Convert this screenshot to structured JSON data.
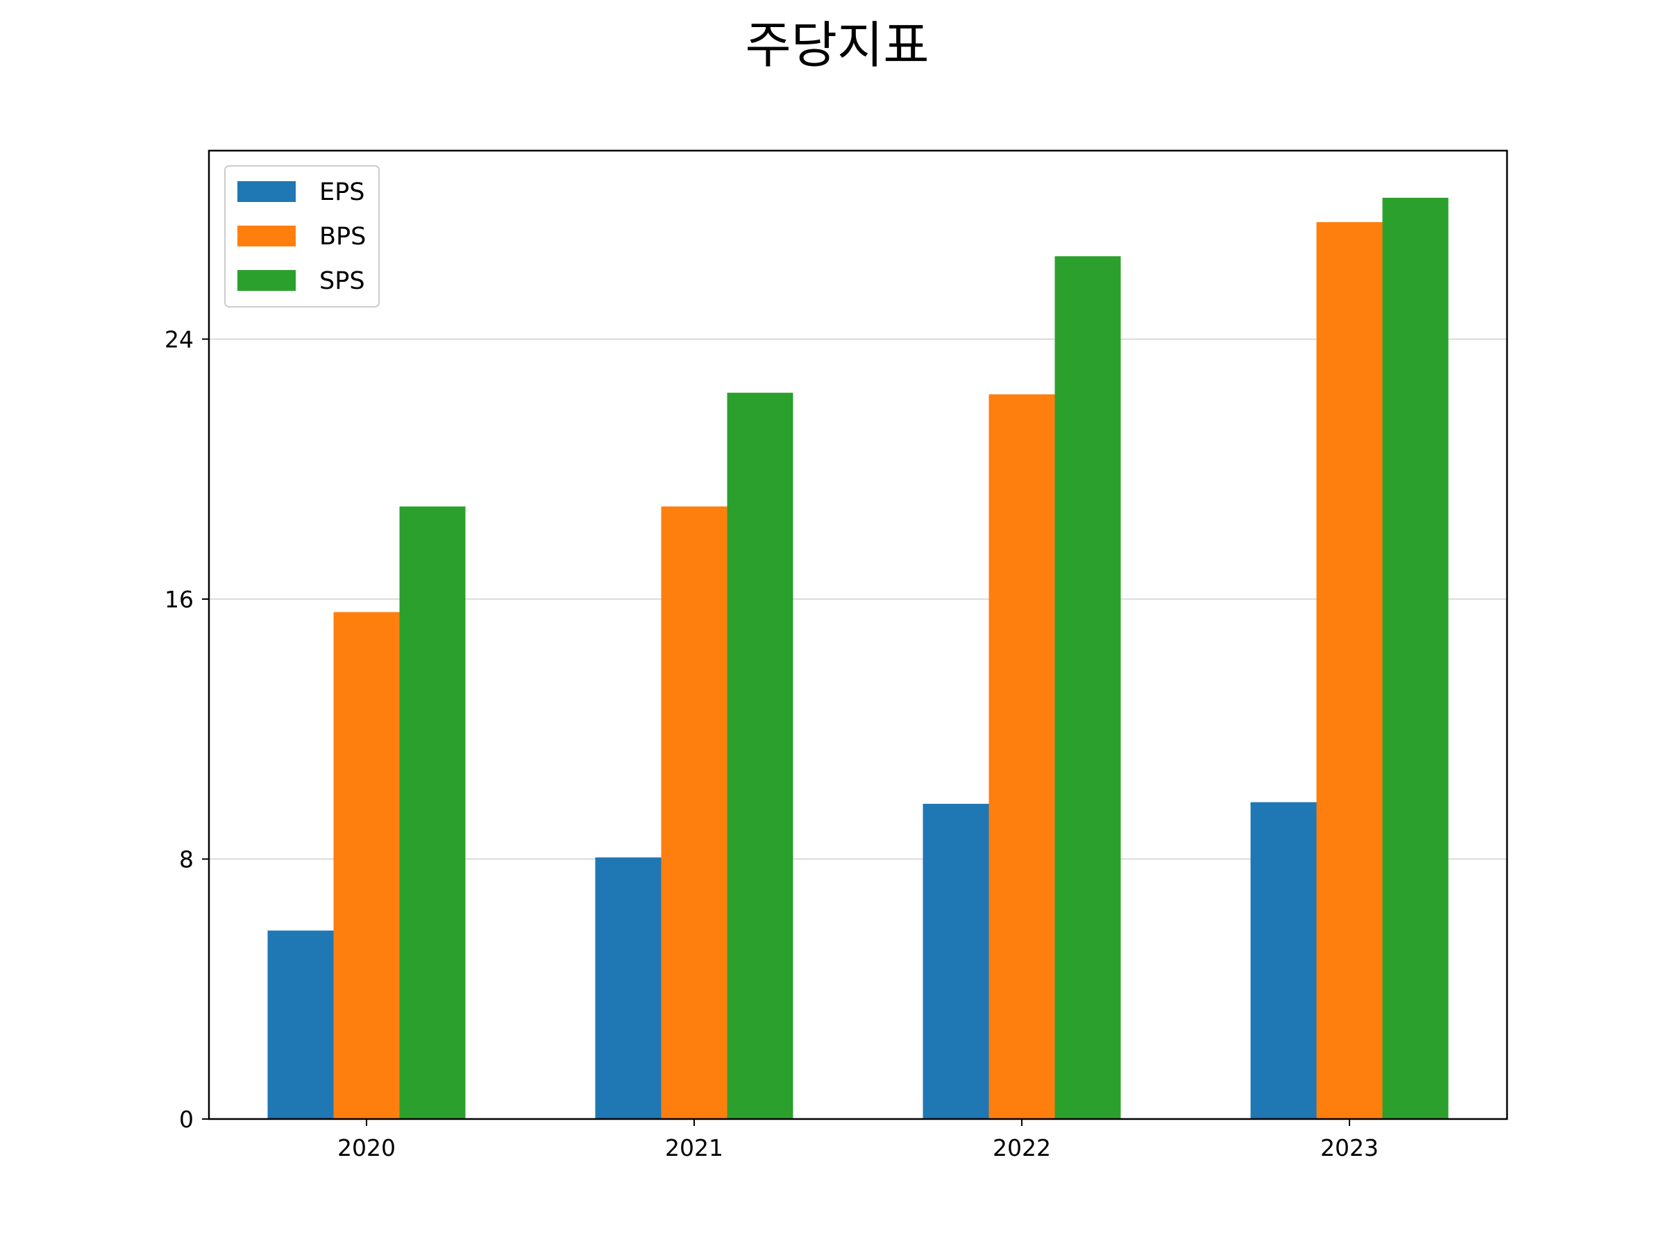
{
  "chart_data": {
    "type": "bar",
    "title": "주당지표",
    "xlabel": "",
    "ylabel": "",
    "categories": [
      "2020",
      "2021",
      "2022",
      "2023"
    ],
    "series": [
      {
        "name": "EPS",
        "color": "#1f77b4",
        "values": [
          5.8,
          8.05,
          9.7,
          9.75
        ]
      },
      {
        "name": "BPS",
        "color": "#ff7f0e",
        "values": [
          15.6,
          18.85,
          22.3,
          27.6
        ]
      },
      {
        "name": "SPS",
        "color": "#2ca02c",
        "values": [
          18.85,
          22.35,
          26.55,
          28.35
        ]
      }
    ],
    "ylim": [
      0,
      29.8
    ],
    "yticks": [
      "0",
      "8",
      "16",
      "24"
    ],
    "grid": "y",
    "legend_position": "upper-left"
  }
}
